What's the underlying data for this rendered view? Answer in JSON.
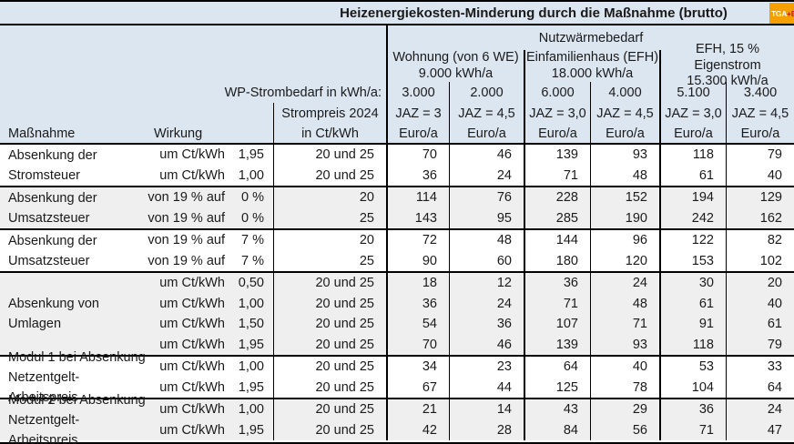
{
  "logo": {
    "text_main": "TGA",
    "text_plus": "+E",
    "bg_color": "#f59f00",
    "plus_color": "#cf1417"
  },
  "colors": {
    "header_bg": "#dce6f1",
    "shaded_row_bg": "#efefef",
    "border": "#000000"
  },
  "chart_data": {
    "type": "table",
    "title": "Heizenergiekosten-Minderung durch die Maßnahme (brutto)",
    "header": {
      "nutzwaermebedarf": "Nutzwärmebedarf",
      "demand_groups": [
        {
          "line1": "Wohnung (von 6 WE)",
          "line2": "9.000 kWh/a"
        },
        {
          "line1": "Einfamilienhaus (EFH)",
          "line2": "18.000 kWh/a"
        },
        {
          "line1": "EFH, 15 % Eigenstrom",
          "line2": "15.300 kWh/a"
        }
      ],
      "wp_strombedarf_label": "WP-Strombedarf in kWh/a:",
      "strombedarf_values": [
        "3.000",
        "2.000",
        "6.000",
        "4.000",
        "5.100",
        "3.400"
      ],
      "strompreis_line1": "Strompreis 2024",
      "strompreis_line2": "in Ct/kWh",
      "jaz_values": [
        "JAZ = 3",
        "JAZ = 4,5",
        "JAZ = 3,0",
        "JAZ = 4,5",
        "JAZ = 3,0",
        "JAZ = 4,5"
      ],
      "unit_values": [
        "Euro/a",
        "Euro/a",
        "Euro/a",
        "Euro/a",
        "Euro/a",
        "Euro/a"
      ],
      "massnahme_label": "Maßnahme",
      "wirkung_label": "Wirkung"
    },
    "groups": [
      {
        "label": [
          "Absenkung der",
          "Stromsteuer"
        ],
        "shaded": false,
        "rows": [
          {
            "wirkung": "um Ct/kWh",
            "wert": "1,95",
            "strompreis": "20 und 25",
            "werte": [
              70,
              46,
              139,
              93,
              118,
              79
            ]
          },
          {
            "wirkung": "um Ct/kWh",
            "wert": "1,00",
            "strompreis": "20 und 25",
            "werte": [
              36,
              24,
              71,
              48,
              61,
              40
            ]
          }
        ]
      },
      {
        "label": [
          "Absenkung der",
          "Umsatzsteuer"
        ],
        "shaded": true,
        "rows": [
          {
            "wirkung": "von 19 % auf",
            "wert": "0 %",
            "strompreis": "20",
            "werte": [
              114,
              76,
              228,
              152,
              194,
              129
            ]
          },
          {
            "wirkung": "von 19 % auf",
            "wert": "0 %",
            "strompreis": "25",
            "werte": [
              143,
              95,
              285,
              190,
              242,
              162
            ]
          }
        ]
      },
      {
        "label": [
          "Absenkung der",
          "Umsatzsteuer"
        ],
        "shaded": false,
        "rows": [
          {
            "wirkung": "von 19 % auf",
            "wert": "7 %",
            "strompreis": "20",
            "werte": [
              72,
              48,
              144,
              96,
              122,
              82
            ]
          },
          {
            "wirkung": "von 19 % auf",
            "wert": "7 %",
            "strompreis": "25",
            "werte": [
              90,
              60,
              180,
              120,
              153,
              102
            ]
          }
        ]
      },
      {
        "label": [
          "Absenkung von",
          "Umlagen"
        ],
        "shaded": true,
        "rows": [
          {
            "wirkung": "um Ct/kWh",
            "wert": "0,50",
            "strompreis": "20 und 25",
            "werte": [
              18,
              12,
              36,
              24,
              30,
              20
            ]
          },
          {
            "wirkung": "um Ct/kWh",
            "wert": "1,00",
            "strompreis": "20 und 25",
            "werte": [
              36,
              24,
              71,
              48,
              61,
              40
            ]
          },
          {
            "wirkung": "um Ct/kWh",
            "wert": "1,50",
            "strompreis": "20 und 25",
            "werte": [
              54,
              36,
              107,
              71,
              91,
              61
            ]
          },
          {
            "wirkung": "um Ct/kWh",
            "wert": "1,95",
            "strompreis": "20 und 25",
            "werte": [
              70,
              46,
              139,
              93,
              118,
              79
            ]
          }
        ]
      },
      {
        "label": [
          "Modul 1 bei Absenkung",
          "Netzentgelt-Arbeitspreis"
        ],
        "shaded": false,
        "rows": [
          {
            "wirkung": "um Ct/kWh",
            "wert": "1,00",
            "strompreis": "20 und 25",
            "werte": [
              34,
              23,
              64,
              40,
              53,
              33
            ]
          },
          {
            "wirkung": "um Ct/kWh",
            "wert": "1,95",
            "strompreis": "20 und 25",
            "werte": [
              67,
              44,
              125,
              78,
              104,
              64
            ]
          }
        ]
      },
      {
        "label": [
          "Modul 2 bei Absenkung",
          "Netzentgelt-Arbeitspreis"
        ],
        "shaded": true,
        "rows": [
          {
            "wirkung": "um Ct/kWh",
            "wert": "1,00",
            "strompreis": "20 und 25",
            "werte": [
              21,
              14,
              43,
              29,
              36,
              24
            ]
          },
          {
            "wirkung": "um Ct/kWh",
            "wert": "1,95",
            "strompreis": "20 und 25",
            "werte": [
              42,
              28,
              84,
              56,
              71,
              47
            ]
          }
        ]
      }
    ]
  }
}
